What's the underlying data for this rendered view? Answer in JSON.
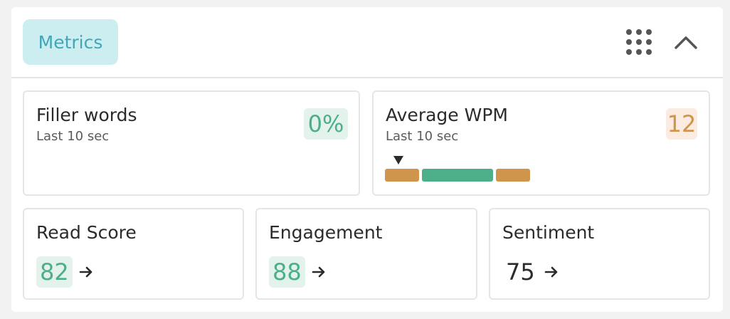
{
  "header": {
    "tab_label": "Metrics",
    "grid_icon": "grid-dots-icon",
    "collapse_icon": "chevron-up-icon"
  },
  "filler_words": {
    "title": "Filler words",
    "subtitle": "Last 10 sec",
    "value": "0%"
  },
  "average_wpm": {
    "title": "Average WPM",
    "subtitle": "Last 10 sec",
    "value": "12",
    "range_segments": [
      "slow",
      "target",
      "fast"
    ]
  },
  "scores": [
    {
      "title": "Read Score",
      "value": "82",
      "highlight": true
    },
    {
      "title": "Engagement",
      "value": "88",
      "highlight": true
    },
    {
      "title": "Sentiment",
      "value": "75",
      "highlight": false
    }
  ],
  "colors": {
    "accent_teal": "#3fa7b8",
    "good_green": "#4caf8a",
    "warn_orange": "#cf954c"
  }
}
